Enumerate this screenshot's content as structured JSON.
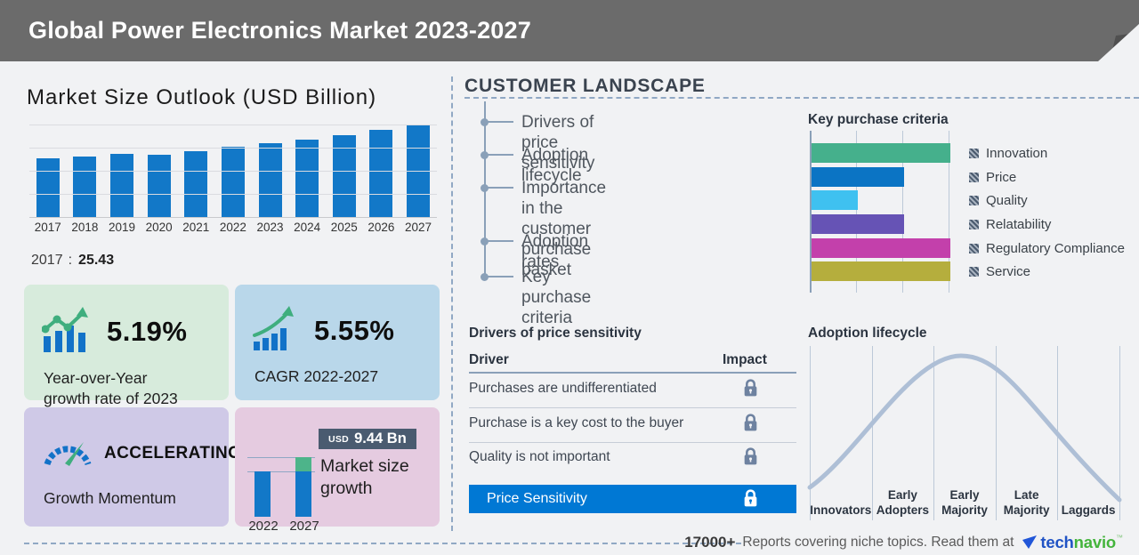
{
  "header": {
    "title": "Global Power Electronics Market 2023-2027"
  },
  "market_outlook": {
    "title": "Market Size Outlook (USD Billion)",
    "base_year": "2017",
    "separator": ":",
    "base_value": "25.43"
  },
  "chart_data": [
    {
      "name": "market_size_outlook",
      "type": "bar",
      "title": "Market Size Outlook (USD Billion)",
      "categories": [
        "2017",
        "2018",
        "2019",
        "2020",
        "2021",
        "2022",
        "2023",
        "2024",
        "2025",
        "2026",
        "2027"
      ],
      "values": [
        25.43,
        26.2,
        27.5,
        27.1,
        28.6,
        30.42,
        32.0,
        33.6,
        35.5,
        37.6,
        39.86
      ],
      "ylabel": "USD Billion",
      "ylim": [
        0,
        40
      ],
      "grid_step": 10,
      "grid": true,
      "bar_color": "#1278c8"
    },
    {
      "name": "key_purchase_criteria",
      "type": "bar",
      "orientation": "horizontal",
      "title": "Key purchase criteria",
      "categories": [
        "Innovation",
        "Price",
        "Quality",
        "Relatability",
        "Regulatory Compliance",
        "Service"
      ],
      "values": [
        3,
        2,
        1,
        2,
        3,
        3
      ],
      "xlim": [
        0,
        3
      ],
      "colors": [
        "#45b08c",
        "#0b74c4",
        "#3fc1f0",
        "#6653b5",
        "#c340ab",
        "#b5ae3d"
      ],
      "legend_position": "right"
    },
    {
      "name": "market_size_growth",
      "type": "bar",
      "title": "Market size growth",
      "categories": [
        "2022",
        "2027"
      ],
      "values": [
        30.42,
        39.86
      ],
      "delta_label_currency": "USD",
      "delta_label_value": "9.44 Bn",
      "bar_color": "#1278c8",
      "delta_color": "#4db48a"
    },
    {
      "name": "adoption_lifecycle",
      "type": "line",
      "title": "Adoption lifecycle",
      "shape": "bell-curve",
      "categories": [
        "Innovators",
        "Early Adopters",
        "Early Majority",
        "Late Majority",
        "Laggards"
      ],
      "line_color": "#aebfd6"
    }
  ],
  "stats": {
    "yoy": {
      "value": "5.19%",
      "label_line1": "Year-over-Year",
      "label_line2": "growth rate of 2023"
    },
    "cagr": {
      "value": "5.55%",
      "label": "CAGR 2022-2027"
    },
    "momentum": {
      "value": "ACCELERATING",
      "label": "Growth Momentum"
    },
    "growth": {
      "badge_currency": "USD",
      "badge_value": "9.44 Bn",
      "label_line1": "Market size",
      "label_line2": "growth",
      "year_start": "2022",
      "year_end": "2027"
    }
  },
  "customer_landscape": {
    "title": "CUSTOMER LANDSCAPE",
    "items": [
      "Drivers of price sensitivity",
      "Adoption lifecycle",
      "Importance in the customer purchase basket",
      "Adoption rates",
      "Key purchase criteria"
    ],
    "key_purchase_title": "Key purchase criteria",
    "adoption_title": "Adoption lifecycle",
    "drivers_table": {
      "title": "Drivers of price sensitivity",
      "columns": [
        "Driver",
        "Impact"
      ],
      "rows": [
        "Purchases are undifferentiated",
        "Purchase is a key cost to the buyer",
        "Quality is not important"
      ],
      "highlight_row": "Price Sensitivity"
    }
  },
  "footer": {
    "count": "17000+",
    "text": "Reports covering niche topics. Read them at",
    "brand_part1": "tech",
    "brand_part2": "navio",
    "trademark": "™"
  },
  "colors": {
    "header_bg": "#6b6b6b",
    "page_bg": "#f1f2f4",
    "primary_bar_blue": "#1278c8",
    "accent_green": "#3fae7e",
    "highlight_row_blue": "#0078d4",
    "badge_navy": "#4a5b70",
    "box_green": "#d7ebdc",
    "box_blue": "#b9d7ea",
    "box_purple": "#cfc9e7",
    "box_pink": "#e5cbe0",
    "dashed_line": "#90a8c4",
    "brand_blue": "#2053c5",
    "brand_green": "#44b43c"
  }
}
